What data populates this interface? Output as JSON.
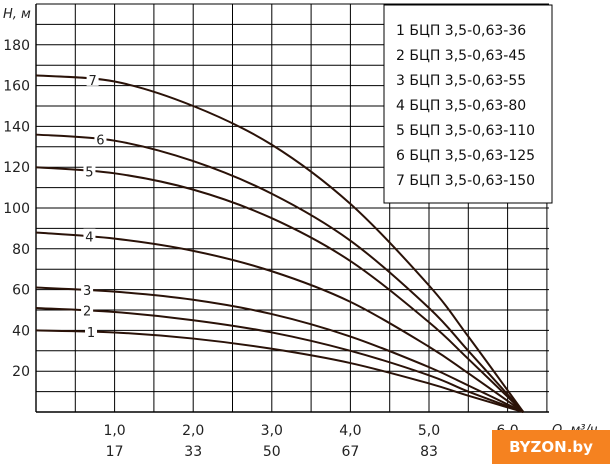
{
  "chart_data": {
    "type": "line",
    "x_axis": {
      "label": "Q, м³/ч",
      "ticks_flow": [
        "1,0",
        "2,0",
        "3,0",
        "4,0",
        "5,0",
        "6,0"
      ],
      "ticks_volume": [
        "17",
        "33",
        "50",
        "67",
        "83",
        ""
      ],
      "range": [
        0,
        6.5
      ]
    },
    "y_axis": {
      "label": "H, м",
      "ticks": [
        20,
        40,
        60,
        80,
        100,
        120,
        140,
        160,
        180
      ],
      "range": [
        0,
        200
      ]
    },
    "grid": true,
    "legend_position": "top-right",
    "series": [
      {
        "name": "1 БЦП 3,5-0,63-36",
        "label": "1",
        "x": [
          0,
          1,
          2,
          3,
          4,
          5,
          5.5,
          6.2
        ],
        "y": [
          40,
          39,
          36,
          31,
          24,
          14,
          8,
          0
        ]
      },
      {
        "name": "2 БЦП 3,5-0,63-45",
        "label": "2",
        "x": [
          0,
          1,
          2,
          3,
          4,
          5,
          5.5,
          6.2
        ],
        "y": [
          51,
          49,
          45,
          39,
          30,
          18,
          10,
          0
        ]
      },
      {
        "name": "3 БЦП 3,5-0,63-55",
        "label": "3",
        "x": [
          0,
          1,
          2,
          3,
          4,
          5,
          5.5,
          6.2
        ],
        "y": [
          61,
          59,
          55,
          48,
          37,
          22,
          13,
          0
        ]
      },
      {
        "name": "4 БЦП 3,5-0,63-80",
        "label": "4",
        "x": [
          0,
          1,
          2,
          3,
          4,
          5,
          5.5,
          6.2
        ],
        "y": [
          88,
          85,
          79,
          69,
          54,
          32,
          19,
          0
        ]
      },
      {
        "name": "5 БЦП 3,5-0,63-110",
        "label": "5",
        "x": [
          0,
          1,
          2,
          3,
          4,
          5,
          5.5,
          6.2
        ],
        "y": [
          120,
          117,
          109,
          95,
          74,
          44,
          26,
          0
        ]
      },
      {
        "name": "6 БЦП 3,5-0,63-125",
        "label": "6",
        "x": [
          0,
          1,
          2,
          3,
          4,
          5,
          5.5,
          6.2
        ],
        "y": [
          136,
          133,
          123,
          107,
          84,
          51,
          30,
          0
        ]
      },
      {
        "name": "7 БЦП 3,5-0,63-150",
        "label": "7",
        "x": [
          0,
          1,
          2,
          3,
          4,
          5,
          5.5,
          6.2
        ],
        "y": [
          165,
          162,
          150,
          131,
          102,
          62,
          37,
          0
        ]
      }
    ]
  },
  "watermark": "BYZON.by",
  "colors": {
    "curve": "#2a1208",
    "grid": "#000000",
    "brand": "#f58220"
  }
}
